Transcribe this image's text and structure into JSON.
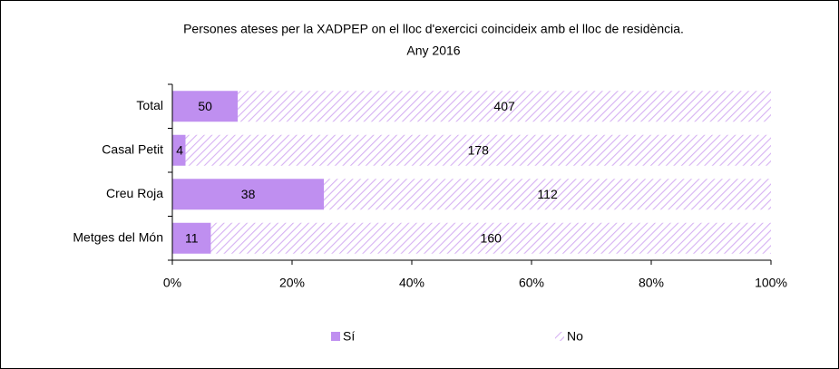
{
  "chart_data": {
    "type": "stacked-bar-100-horizontal",
    "title": [
      "Persones ateses per la XADPEP on el lloc d'exercici coincideix amb el lloc de residència.",
      "Any 2016"
    ],
    "categories": [
      "Total",
      "Casal Petit",
      "Creu Roja",
      "Metges del Món"
    ],
    "series": [
      {
        "name": "Sí",
        "color": "#bf8ff0",
        "fill": "solid",
        "values": [
          50,
          4,
          38,
          11
        ]
      },
      {
        "name": "No",
        "color": "#d6b1f3",
        "fill": "hatch",
        "values": [
          407,
          178,
          112,
          160
        ]
      }
    ],
    "xlim": [
      0,
      100
    ],
    "xticks": [
      {
        "value": 0,
        "label": "0%"
      },
      {
        "value": 20,
        "label": "20%"
      },
      {
        "value": 40,
        "label": "40%"
      },
      {
        "value": 60,
        "label": "60%"
      },
      {
        "value": 80,
        "label": "80%"
      },
      {
        "value": 100,
        "label": "100%"
      }
    ],
    "legend": "bottom"
  }
}
